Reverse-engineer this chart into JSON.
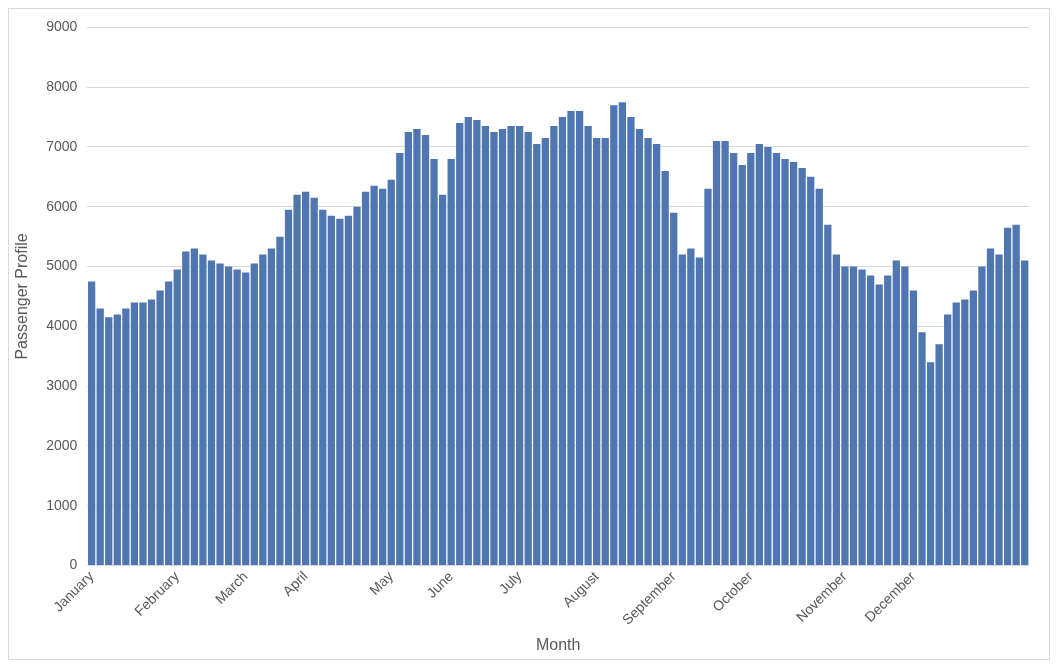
{
  "chart_data": {
    "type": "bar",
    "xlabel": "Month",
    "ylabel": "Passenger Profile",
    "categories": [
      "January",
      null,
      null,
      null,
      null,
      null,
      null,
      null,
      null,
      null,
      "February",
      null,
      null,
      null,
      null,
      null,
      null,
      null,
      "March",
      null,
      null,
      null,
      null,
      null,
      null,
      "April",
      null,
      null,
      null,
      null,
      null,
      null,
      null,
      null,
      null,
      "May",
      null,
      null,
      null,
      null,
      null,
      null,
      "June",
      null,
      null,
      null,
      null,
      null,
      null,
      null,
      "July",
      null,
      null,
      null,
      null,
      null,
      null,
      null,
      null,
      "August",
      null,
      null,
      null,
      null,
      null,
      null,
      null,
      null,
      "September",
      null,
      null,
      null,
      null,
      null,
      null,
      null,
      null,
      "October",
      null,
      null,
      null,
      null,
      null,
      null,
      null,
      null,
      null,
      null,
      "November",
      null,
      null,
      null,
      null,
      null,
      null,
      null,
      "December",
      null,
      null,
      null,
      null,
      null,
      null,
      null,
      null,
      null,
      null,
      null,
      null,
      null
    ],
    "values": [
      4750,
      4300,
      4150,
      4200,
      4300,
      4400,
      4400,
      4450,
      4600,
      4750,
      4950,
      5250,
      5300,
      5200,
      5100,
      5050,
      5000,
      4950,
      4900,
      5050,
      5200,
      5300,
      5500,
      5950,
      6200,
      6250,
      6150,
      5950,
      5850,
      5800,
      5850,
      6000,
      6250,
      6350,
      6300,
      6450,
      6900,
      7250,
      7300,
      7200,
      6800,
      6200,
      6800,
      7400,
      7500,
      7450,
      7350,
      7250,
      7300,
      7350,
      7350,
      7250,
      7050,
      7150,
      7350,
      7500,
      7600,
      7600,
      7350,
      7150,
      7150,
      7700,
      7750,
      7500,
      7300,
      7150,
      7050,
      6600,
      5900,
      5200,
      5300,
      5150,
      6300,
      7100,
      7100,
      6900,
      6700,
      6900,
      7050,
      7000,
      6900,
      6800,
      6750,
      6650,
      6500,
      6300,
      5700,
      5200,
      5000,
      5000,
      4950,
      4850,
      4700,
      4850,
      5100,
      5000,
      4600,
      3900,
      3400,
      3700,
      4200,
      4400,
      4450,
      4600,
      5000,
      5300,
      5200,
      5650,
      5700,
      5100
    ],
    "color": "#4f76b0",
    "ylim": [
      0,
      9000
    ],
    "yticks": [
      0,
      1000,
      2000,
      3000,
      4000,
      5000,
      6000,
      7000,
      8000,
      9000
    ],
    "grid": "y"
  }
}
